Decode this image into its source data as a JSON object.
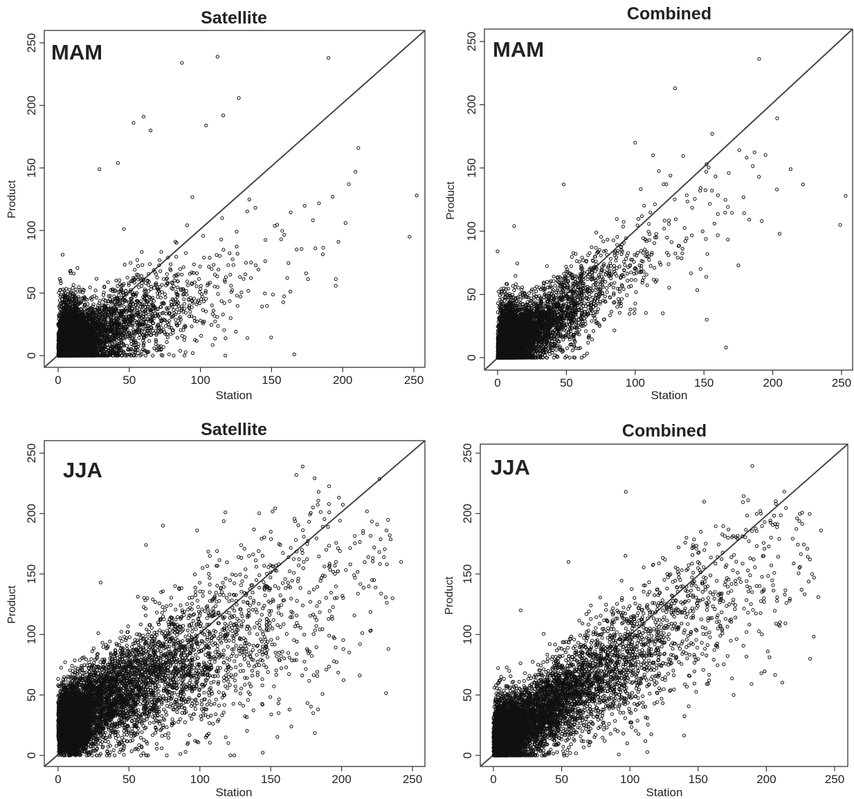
{
  "chart_data": [
    {
      "type": "scatter",
      "title": "Satellite",
      "season": "MAM",
      "xlabel": "Station",
      "ylabel": "Product",
      "xlim": [
        0,
        250
      ],
      "ylim": [
        0,
        250
      ],
      "xticks": [
        0,
        50,
        100,
        150,
        200,
        250
      ],
      "yticks": [
        0,
        50,
        100,
        150,
        200,
        250
      ],
      "identity_line": true,
      "outliers": [
        [
          87,
          234
        ],
        [
          112,
          239
        ],
        [
          190,
          238
        ],
        [
          127,
          206
        ],
        [
          104,
          184
        ],
        [
          116,
          192
        ],
        [
          60,
          191
        ],
        [
          53,
          186
        ],
        [
          166,
          1
        ],
        [
          209,
          147
        ],
        [
          211,
          166
        ],
        [
          252,
          128
        ],
        [
          193,
          127
        ],
        [
          202,
          106
        ],
        [
          247,
          95
        ],
        [
          186,
          81
        ],
        [
          197,
          91
        ],
        [
          161,
          62
        ],
        [
          133,
          14
        ],
        [
          65,
          180
        ],
        [
          29,
          149
        ],
        [
          42,
          154
        ]
      ]
    },
    {
      "type": "scatter",
      "title": "Combined",
      "season": "MAM",
      "xlabel": "Station",
      "ylabel": "Product",
      "xlim": [
        0,
        250
      ],
      "ylim": [
        0,
        250
      ],
      "xticks": [
        0,
        50,
        100,
        150,
        200,
        250
      ],
      "yticks": [
        0,
        50,
        100,
        150,
        200,
        250
      ],
      "identity_line": true,
      "outliers": [
        [
          129,
          213
        ],
        [
          100,
          170
        ],
        [
          113,
          160
        ],
        [
          156,
          177
        ],
        [
          168,
          146
        ],
        [
          190,
          143
        ],
        [
          203,
          133
        ],
        [
          213,
          149
        ],
        [
          222,
          137
        ],
        [
          253,
          128
        ],
        [
          205,
          98
        ],
        [
          192,
          108
        ],
        [
          249,
          105
        ],
        [
          175,
          73
        ],
        [
          166,
          8
        ],
        [
          12,
          104
        ],
        [
          0,
          84
        ],
        [
          48,
          137
        ],
        [
          152,
          30
        ]
      ]
    },
    {
      "type": "scatter",
      "title": "Satellite",
      "season": "JJA",
      "xlabel": "Station",
      "ylabel": "Product",
      "xlim": [
        0,
        250
      ],
      "ylim": [
        0,
        250
      ],
      "xticks": [
        0,
        50,
        100,
        150,
        200,
        250
      ],
      "yticks": [
        0,
        50,
        100,
        150,
        200,
        250
      ],
      "identity_line": true,
      "outliers": [
        [
          118,
          201
        ],
        [
          74,
          190
        ],
        [
          150,
          185
        ],
        [
          98,
          186
        ],
        [
          232,
          158
        ],
        [
          242,
          160
        ],
        [
          223,
          145
        ],
        [
          236,
          130
        ],
        [
          233,
          88
        ],
        [
          213,
          92
        ],
        [
          196,
          160
        ],
        [
          172,
          170
        ],
        [
          180,
          35
        ],
        [
          30,
          143
        ],
        [
          62,
          174
        ]
      ]
    },
    {
      "type": "scatter",
      "title": "Combined",
      "season": "JJA",
      "xlabel": "Station",
      "ylabel": "Product",
      "xlim": [
        0,
        250
      ],
      "ylim": [
        0,
        250
      ],
      "xticks": [
        0,
        50,
        100,
        150,
        200,
        250
      ],
      "yticks": [
        0,
        50,
        100,
        150,
        200,
        250
      ],
      "identity_line": true,
      "outliers": [
        [
          97,
          218
        ],
        [
          207,
          208
        ],
        [
          196,
          200
        ],
        [
          240,
          186
        ],
        [
          230,
          171
        ],
        [
          235,
          147
        ],
        [
          238,
          131
        ],
        [
          232,
          80
        ],
        [
          210,
          110
        ],
        [
          201,
          86
        ],
        [
          176,
          50
        ],
        [
          152,
          185
        ],
        [
          55,
          160
        ],
        [
          98,
          10
        ],
        [
          20,
          120
        ]
      ]
    }
  ]
}
